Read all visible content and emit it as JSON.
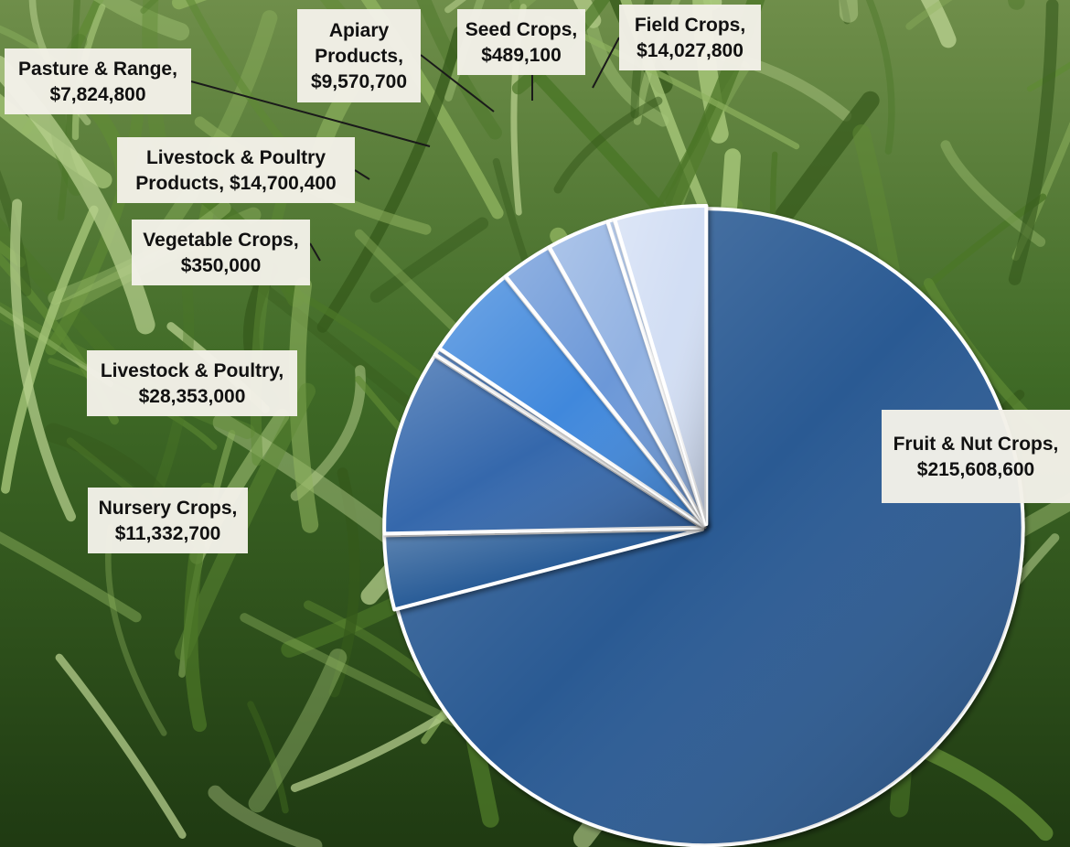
{
  "chart_data": {
    "type": "pie",
    "title": "",
    "legend": "none",
    "label_style": "category-and-value callouts",
    "slices": [
      {
        "label_line1": "Fruit & Nut Crops,",
        "label_line2": "$215,608,600",
        "value": 215608600,
        "color": "#2b5a93"
      },
      {
        "label_line1": "Nursery Crops,",
        "label_line2": "$11,332,700",
        "value": 11332700,
        "color": "#2c5d98"
      },
      {
        "label_line1": "Livestock & Poultry,",
        "label_line2": "$28,353,000",
        "value": 28353000,
        "color": "#3467ac"
      },
      {
        "label_line1": "Vegetable Crops,",
        "label_line2": "$350,000",
        "value": 350000,
        "color": "#3a73c0"
      },
      {
        "label_line1": "Livestock & Poultry",
        "label_line2": "Products, $14,700,400",
        "value": 14700400,
        "color": "#4088dc"
      },
      {
        "label_line1": "Pasture & Range,",
        "label_line2": "$7,824,800",
        "value": 7824800,
        "color": "#6c98d8"
      },
      {
        "label_line1": "Apiary",
        "label_line2": "Products,",
        "label_line3": "$9,570,700",
        "value": 9570700,
        "color": "#92b2e2"
      },
      {
        "label_line1": "Seed Crops,",
        "label_line2": "$489,100",
        "value": 489100,
        "color": "#a6c0e8"
      },
      {
        "label_line1": "Field Crops,",
        "label_line2": "$14,027,800",
        "value": 14027800,
        "color": "#d2def4"
      }
    ]
  }
}
